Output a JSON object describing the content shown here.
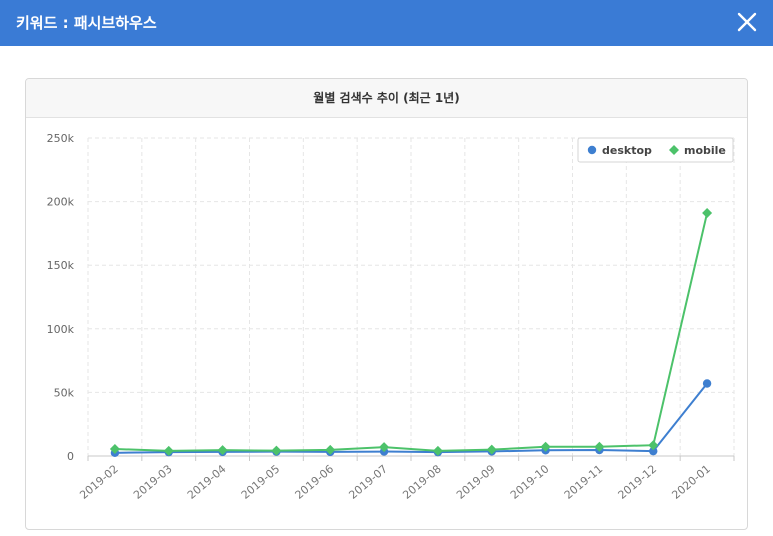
{
  "header": {
    "title": "키워드 : 패시브하우스",
    "close_label": "close"
  },
  "card": {
    "title": "월별 검색수 추이 (최근 1년)"
  },
  "colors": {
    "header_bg": "#3a7bd5",
    "desktop": "#3e7fd0",
    "mobile": "#4cc26a"
  },
  "chart_data": {
    "type": "line",
    "title": "월별 검색수 추이 (최근 1년)",
    "xlabel": "",
    "ylabel": "",
    "categories": [
      "2019-02",
      "2019-03",
      "2019-04",
      "2019-05",
      "2019-06",
      "2019-07",
      "2019-08",
      "2019-09",
      "2019-10",
      "2019-11",
      "2019-12",
      "2020-01"
    ],
    "series": [
      {
        "name": "desktop",
        "color": "#3e7fd0",
        "marker": "circle",
        "values": [
          2500,
          3000,
          3200,
          3400,
          3200,
          3500,
          3000,
          3600,
          4500,
          4700,
          3800,
          57000
        ]
      },
      {
        "name": "mobile",
        "color": "#4cc26a",
        "marker": "diamond",
        "values": [
          5500,
          4000,
          4600,
          4200,
          4800,
          7000,
          4000,
          5000,
          7300,
          7300,
          8500,
          191000
        ]
      }
    ],
    "ylim": [
      0,
      250000
    ],
    "yticks": [
      "0",
      "50k",
      "100k",
      "150k",
      "200k",
      "250k"
    ],
    "ytick_values": [
      0,
      50000,
      100000,
      150000,
      200000,
      250000
    ],
    "grid": true,
    "legend_position": "top-right"
  }
}
